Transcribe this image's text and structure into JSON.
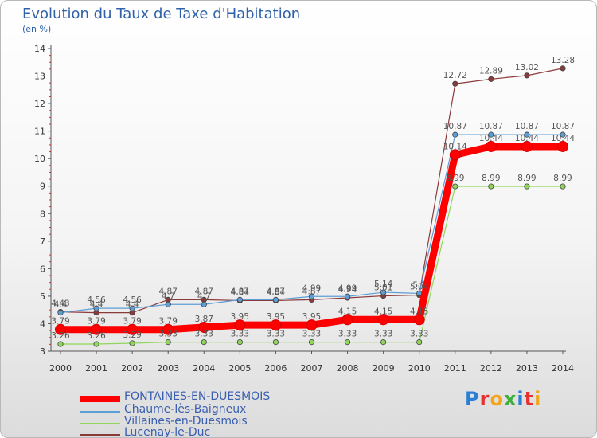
{
  "header": {
    "title": "Evolution du Taux de Taxe d'Habitation",
    "subtitle": "(en %)"
  },
  "logo": {
    "text": "Proxiti",
    "colors": [
      "#2a7fd4",
      "#e6312f",
      "#f2a51a",
      "#3fae3a",
      "#2a7fd4",
      "#e6312f",
      "#f2a51a"
    ]
  },
  "chart_data": {
    "type": "line",
    "x": [
      "2000",
      "2001",
      "2002",
      "2003",
      "2004",
      "2005",
      "2006",
      "2007",
      "2008",
      "2009",
      "2010",
      "2011",
      "2012",
      "2013",
      "2014"
    ],
    "ylim": [
      3,
      14
    ],
    "yticks": [
      "3",
      "4",
      "5",
      "6",
      "7",
      "8",
      "9",
      "10",
      "11",
      "12",
      "13",
      "14"
    ],
    "grid": false,
    "legend_position": "bottom-left",
    "series": [
      {
        "name": "FONTAINES-EN-DUESMOIS",
        "color": "#ff0000",
        "values": [
          3.79,
          3.79,
          3.79,
          3.79,
          3.87,
          3.95,
          3.95,
          3.95,
          4.15,
          4.15,
          4.15,
          10.14,
          10.44,
          10.44,
          10.44
        ],
        "labels": [
          "3.79",
          "3.79",
          "3.79",
          "3.79",
          "3.87",
          "3.95",
          "3.95",
          "3.95",
          "4.15",
          "4.15",
          "4.15",
          "10.14",
          "10.44",
          "10.44",
          "10.44"
        ]
      },
      {
        "name": "Chaume-lès-Baigneux",
        "color": "#5d9ed6",
        "values": [
          4.4,
          4.56,
          4.56,
          4.7,
          4.7,
          4.87,
          4.87,
          4.99,
          4.99,
          5.14,
          5.1,
          10.87,
          10.87,
          10.87,
          10.87
        ],
        "labels": [
          "4.4",
          "4.56",
          "4.56",
          "4.7",
          "4.7",
          "4.87",
          "4.87",
          "4.99",
          "4.99",
          "5.14",
          "5.1",
          "10.87",
          "10.87",
          "10.87",
          "10.87"
        ]
      },
      {
        "name": "Villaines-en-Duesmois",
        "color": "#8fd65a",
        "values": [
          3.26,
          3.26,
          3.29,
          3.33,
          3.33,
          3.33,
          3.33,
          3.33,
          3.33,
          3.33,
          3.33,
          8.99,
          8.99,
          8.99,
          8.99
        ],
        "labels": [
          "3.26",
          "3.26",
          "3.29",
          "3.33",
          "3.33",
          "3.33",
          "3.33",
          "3.33",
          "3.33",
          "3.33",
          "3.33",
          "8.99",
          "8.99",
          "8.99",
          "8.99"
        ]
      },
      {
        "name": "Lucenay-le-Duc",
        "color": "#8b3a3a",
        "values": [
          4.43,
          4.4,
          4.4,
          4.87,
          4.87,
          4.84,
          4.84,
          4.87,
          4.94,
          5.01,
          5.04,
          12.72,
          12.89,
          13.02,
          13.28
        ],
        "labels": [
          "4.43",
          "4.4",
          "4.4",
          "4.87",
          "4.87",
          "4.84",
          "4.84",
          "4.87",
          "4.94",
          "5.01",
          "5.04",
          "12.72",
          "12.89",
          "13.02",
          "13.28"
        ]
      }
    ]
  }
}
